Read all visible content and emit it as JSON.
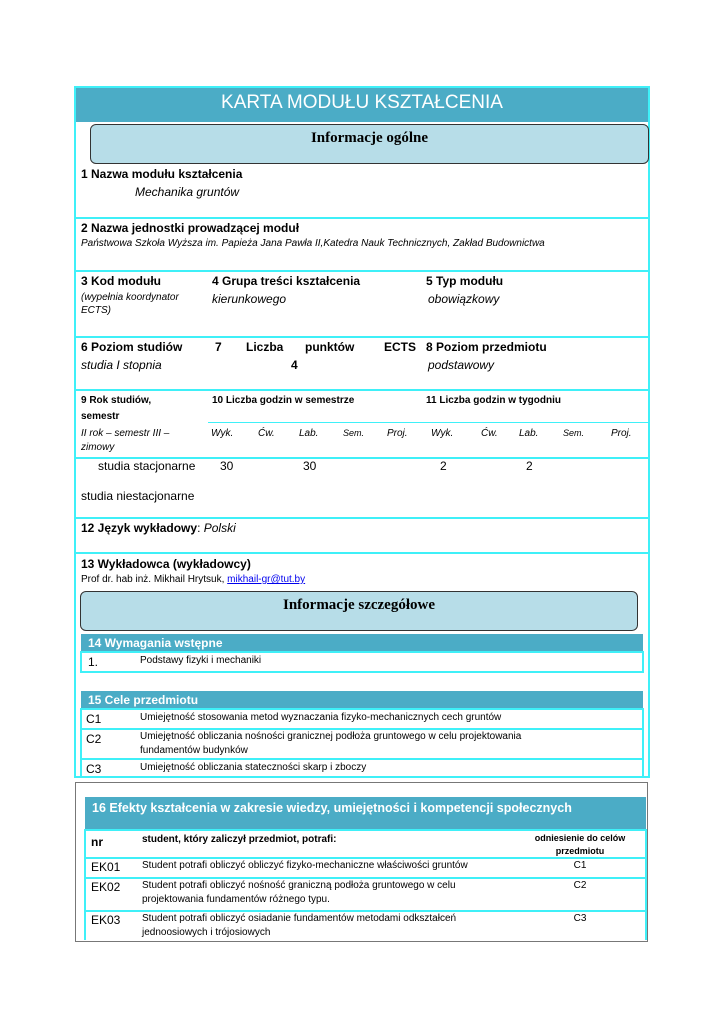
{
  "title": "KARTA MODUŁU KSZTAŁCENIA",
  "general_info": "Informacje ogólne",
  "f1": {
    "label": "1 Nazwa modułu kształcenia",
    "value": "Mechanika gruntów"
  },
  "f2": {
    "label": "2 Nazwa jednostki prowadzącej moduł",
    "value": "Państwowa Szkoła Wyższa im. Papieża Jana Pawła II,Katedra Nauk Technicznych, Zakład Budownictwa"
  },
  "f3": {
    "label": "3 Kod modułu",
    "note1": "(wypełnia koordynator",
    "note2": "ECTS)"
  },
  "f4": {
    "label": "4 Grupa treści kształcenia",
    "value": "kierunkowego"
  },
  "f5": {
    "label": "5 Typ modułu",
    "value": "obowiązkowy"
  },
  "f6": {
    "label": "6 Poziom studiów",
    "value": "studia I stopnia"
  },
  "f7": {
    "w1": "7",
    "w2": "Liczba",
    "w3": "punktów",
    "w4": "ECTS",
    "value": "4"
  },
  "f8": {
    "label": "8 Poziom przedmiotu",
    "value": "podstawowy"
  },
  "f9": {
    "label1": "9 Rok studiów,",
    "label2": "semestr",
    "value1": "II rok – semestr III –",
    "value2": "zimowy"
  },
  "f10": {
    "label": "10 Liczba godzin w semestrze"
  },
  "f11": {
    "label": "11 Liczba godzin w tygodniu"
  },
  "hours_cols": [
    "Wyk.",
    "Ćw.",
    "Lab.",
    "Sem.",
    "Proj."
  ],
  "hours_rows": [
    {
      "label": "studia stacjonarne",
      "sem": [
        "30",
        "",
        "30",
        "",
        ""
      ],
      "week": [
        "2",
        "",
        "2",
        "",
        ""
      ]
    },
    {
      "label": "studia niestacjonarne",
      "sem": [
        "",
        "",
        "",
        "",
        ""
      ],
      "week": [
        "",
        "",
        "",
        "",
        ""
      ]
    }
  ],
  "f12": {
    "label": "12 Język wykładowy",
    "value": "Polski"
  },
  "f13": {
    "label": "13 Wykładowca (wykładowcy)",
    "value": "Prof dr. hab inż. Mikhail Hrytsuk, ",
    "email": "mikhail-gr@tut.by"
  },
  "detail_info": "Informacje szczegółowe",
  "f14": {
    "label": "14 Wymagania wstępne",
    "rows": [
      {
        "nr": "1.",
        "text": "Podstawy fizyki i mechaniki"
      }
    ]
  },
  "f15": {
    "label": "15 Cele przedmiotu",
    "rows": [
      {
        "nr": "C1",
        "text": "Umiejętność stosowania metod wyznaczania fizyko-mechanicznych cech gruntów"
      },
      {
        "nr": "C2",
        "text": "Umiejętność obliczania nośności granicznej podłoża gruntowego w celu projektowania",
        "text2": "fundamentów budynków"
      },
      {
        "nr": "C3",
        "text": "Umiejętność obliczania stateczności skarp i zboczy"
      }
    ]
  },
  "f16": {
    "label": "16 Efekty kształcenia w zakresie wiedzy, umiejętności i kompetencji społecznych",
    "h_nr": "nr",
    "h_desc": "student, który zaliczył przedmiot, potrafi:",
    "h_ref1": "odniesienie do celów",
    "h_ref2": "przedmiotu",
    "rows": [
      {
        "nr": "EK01",
        "text": "Student potrafi obliczyć obliczyć fizyko-mechaniczne właściwości gruntów",
        "text2": "",
        "ref": "C1"
      },
      {
        "nr": "EK02",
        "text": "Student potrafi obliczyć nośność graniczną podłoża gruntowego w celu",
        "text2": "projektowania fundamentów różnego typu.",
        "ref": "C2"
      },
      {
        "nr": "EK03",
        "text": "Student potrafi obliczyć  osiadanie fundamentów metodami odkształceń",
        "text2": "jednoosiowych i trójosiowych",
        "ref": "C3"
      }
    ]
  }
}
